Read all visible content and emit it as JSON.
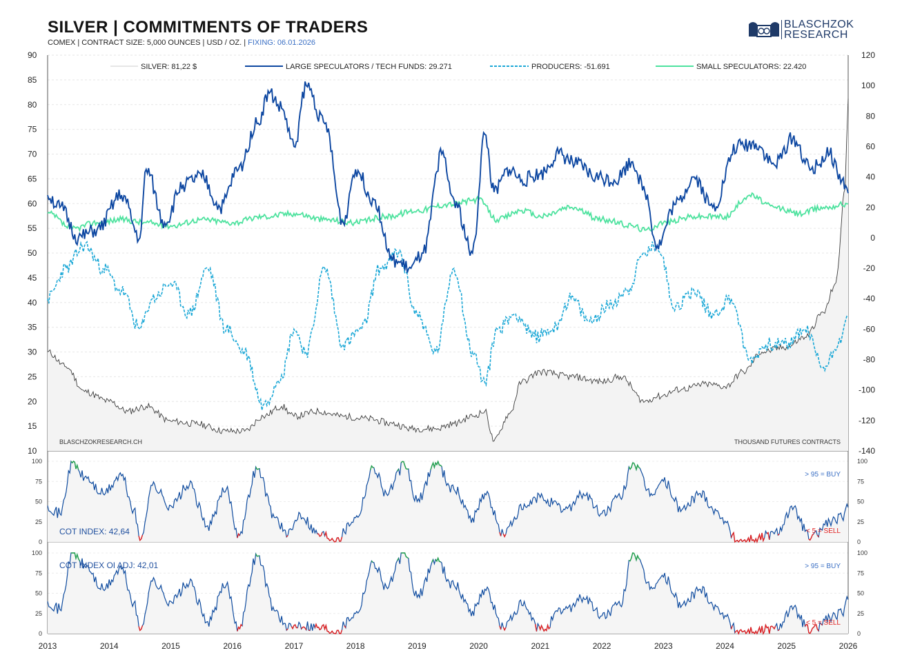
{
  "header": {
    "title": "SILVER | COMMITMENTS OF TRADERS",
    "subtitle_main": "COMEX | CONTRACT SIZE: 5,000 OUNCES | USD / OZ. |",
    "subtitle_fixing": "FIXING: 06.01.2026"
  },
  "logo": {
    "line1": "BLASCHZOK",
    "line2": "RESEARCH"
  },
  "colors": {
    "silver": "#3a3a3a",
    "large_specs": "#0d47a1",
    "producers": "#1aa7d6",
    "small_specs": "#4de29e",
    "cot_line": "#0d4a9e",
    "cot_buy": "#22a24a",
    "cot_sell": "#e02020",
    "buy_text": "#3a6fc4",
    "sell_text": "#e02020"
  },
  "chart_data": [
    {
      "type": "line",
      "title": "SILVER | COMMITMENTS OF TRADERS",
      "x_range": [
        2013,
        2026
      ],
      "x_ticks": [
        "2013",
        "2014",
        "2015",
        "2016",
        "2017",
        "2018",
        "2019",
        "2020",
        "2021",
        "2022",
        "2023",
        "2024",
        "2025",
        "2026"
      ],
      "y_left": {
        "range": [
          10,
          90
        ],
        "ticks": [
          "90",
          "85",
          "80",
          "75",
          "70",
          "65",
          "60",
          "55",
          "50",
          "45",
          "40",
          "35",
          "30",
          "25",
          "20",
          "15",
          "10"
        ]
      },
      "y_right": {
        "range": [
          -140,
          120
        ],
        "ticks": [
          "120",
          "100",
          "80",
          "60",
          "40",
          "20",
          "0",
          "-20",
          "-40",
          "-60",
          "-80",
          "-100",
          "-120",
          "-140"
        ]
      },
      "grid": true,
      "legend_position": "top",
      "watermark": "BLASCHZOKRESEARCH.CH",
      "units_note": "THOUSAND  FUTURES CONTRACTS",
      "series": [
        {
          "name": "SILVER: 81,22 $",
          "axis": "left",
          "x": [
            2013.0,
            2013.3,
            2013.6,
            2014.0,
            2014.3,
            2014.6,
            2015.0,
            2015.4,
            2015.9,
            2016.2,
            2016.5,
            2016.8,
            2017.0,
            2017.4,
            2017.8,
            2018.2,
            2018.6,
            2018.9,
            2019.3,
            2019.6,
            2019.9,
            2020.1,
            2020.25,
            2020.5,
            2020.7,
            2021.0,
            2021.5,
            2022.0,
            2022.3,
            2022.7,
            2022.9,
            2023.3,
            2023.7,
            2024.0,
            2024.3,
            2024.6,
            2025.0,
            2025.3,
            2025.6,
            2025.8,
            2025.95,
            2026.0
          ],
          "y": [
            30,
            27,
            22,
            20,
            18,
            19,
            16,
            15.5,
            14,
            14,
            17,
            19,
            17,
            18,
            17,
            16.5,
            15.5,
            14.5,
            14.5,
            15.5,
            17,
            18,
            12,
            17.5,
            24,
            26,
            25,
            24,
            25,
            20,
            21,
            22.5,
            23.5,
            23,
            26,
            30,
            31,
            33,
            38,
            44,
            63,
            81.2
          ]
        },
        {
          "name": "LARGE SPECULATORS / TECH FUNDS: 29.271",
          "axis": "right",
          "x": [
            2013.0,
            2013.2,
            2013.5,
            2013.8,
            2014.2,
            2014.5,
            2014.6,
            2014.9,
            2015.2,
            2015.5,
            2015.8,
            2016.1,
            2016.4,
            2016.6,
            2016.8,
            2017.0,
            2017.2,
            2017.5,
            2017.8,
            2018.0,
            2018.3,
            2018.6,
            2018.9,
            2019.1,
            2019.4,
            2019.6,
            2019.9,
            2020.1,
            2020.25,
            2020.5,
            2020.7,
            2021.0,
            2021.3,
            2021.6,
            2021.9,
            2022.2,
            2022.5,
            2022.7,
            2022.9,
            2023.2,
            2023.5,
            2023.8,
            2024.2,
            2024.5,
            2024.8,
            2025.1,
            2025.4,
            2025.7,
            2025.9,
            2026.0
          ],
          "y": [
            28,
            20,
            0,
            5,
            28,
            0,
            45,
            10,
            35,
            40,
            20,
            45,
            75,
            95,
            85,
            60,
            100,
            75,
            10,
            45,
            25,
            -15,
            -20,
            -10,
            55,
            25,
            -10,
            68,
            30,
            45,
            38,
            42,
            55,
            48,
            40,
            38,
            50,
            30,
            -5,
            22,
            40,
            20,
            60,
            62,
            48,
            65,
            45,
            55,
            38,
            29.3
          ]
        },
        {
          "name": "PRODUCERS: -51.691",
          "axis": "right",
          "x": [
            2013.0,
            2013.3,
            2013.6,
            2013.9,
            2014.2,
            2014.5,
            2014.7,
            2015.0,
            2015.3,
            2015.6,
            2015.9,
            2016.2,
            2016.5,
            2016.8,
            2017.0,
            2017.2,
            2017.5,
            2017.8,
            2018.1,
            2018.4,
            2018.7,
            2019.0,
            2019.3,
            2019.6,
            2019.9,
            2020.1,
            2020.3,
            2020.6,
            2020.9,
            2021.2,
            2021.5,
            2021.8,
            2022.1,
            2022.4,
            2022.7,
            2022.9,
            2023.2,
            2023.5,
            2023.8,
            2024.1,
            2024.4,
            2024.7,
            2025.0,
            2025.3,
            2025.6,
            2025.9,
            2026.0
          ],
          "y": [
            -40,
            -20,
            -5,
            -20,
            -35,
            -60,
            -40,
            -30,
            -50,
            -20,
            -60,
            -75,
            -110,
            -90,
            -60,
            -75,
            -20,
            -70,
            -60,
            -20,
            -10,
            -50,
            -75,
            -20,
            -75,
            -95,
            -60,
            -50,
            -65,
            -60,
            -40,
            -55,
            -45,
            -35,
            -10,
            -5,
            -45,
            -35,
            -50,
            -40,
            -80,
            -70,
            -70,
            -60,
            -85,
            -65,
            -51.7
          ]
        },
        {
          "name": "SMALL SPECULATORS: 22.420",
          "axis": "right",
          "x": [
            2013.0,
            2013.4,
            2013.8,
            2014.2,
            2014.6,
            2015.0,
            2015.5,
            2016.0,
            2016.5,
            2017.0,
            2017.5,
            2018.0,
            2018.5,
            2019.0,
            2019.5,
            2020.0,
            2020.3,
            2020.7,
            2021.0,
            2021.5,
            2022.0,
            2022.5,
            2022.7,
            2023.0,
            2023.5,
            2024.0,
            2024.4,
            2024.8,
            2025.2,
            2025.6,
            2026.0
          ],
          "y": [
            16,
            6,
            10,
            12,
            10,
            8,
            12,
            10,
            14,
            16,
            12,
            10,
            14,
            18,
            22,
            25,
            12,
            18,
            14,
            20,
            12,
            8,
            5,
            10,
            14,
            14,
            28,
            20,
            16,
            20,
            22.4
          ]
        }
      ]
    },
    {
      "type": "line",
      "title": "COT INDEX: 42,64",
      "y_range": [
        0,
        100
      ],
      "y_ticks": [
        "100",
        "75",
        "50",
        "25",
        "0"
      ],
      "annotations": [
        "> 95 = BUY",
        "< 5 = SELL"
      ],
      "x": [
        2013.0,
        2013.2,
        2013.4,
        2013.6,
        2013.9,
        2014.2,
        2014.4,
        2014.5,
        2014.7,
        2015.0,
        2015.3,
        2015.6,
        2015.9,
        2016.1,
        2016.4,
        2016.7,
        2016.9,
        2017.1,
        2017.4,
        2017.7,
        2018.0,
        2018.3,
        2018.5,
        2018.8,
        2019.0,
        2019.3,
        2019.6,
        2019.9,
        2020.1,
        2020.4,
        2020.7,
        2021.0,
        2021.4,
        2021.7,
        2022.0,
        2022.3,
        2022.5,
        2022.8,
        2023.0,
        2023.3,
        2023.6,
        2023.9,
        2024.2,
        2024.5,
        2024.8,
        2025.1,
        2025.4,
        2025.7,
        2025.9,
        2026.0
      ],
      "y": [
        45,
        35,
        98,
        80,
        60,
        82,
        40,
        2,
        70,
        45,
        70,
        20,
        65,
        10,
        90,
        30,
        8,
        35,
        10,
        5,
        30,
        92,
        60,
        95,
        50,
        98,
        65,
        30,
        60,
        10,
        40,
        55,
        40,
        60,
        35,
        55,
        98,
        60,
        75,
        40,
        60,
        35,
        2,
        4,
        10,
        40,
        5,
        25,
        30,
        42.64
      ]
    },
    {
      "type": "line",
      "title": "COT INDEX OI ADJ: 42,01",
      "y_range": [
        0,
        100
      ],
      "y_ticks": [
        "100",
        "75",
        "50",
        "25",
        "0"
      ],
      "annotations": [
        "> 95 = BUY",
        "< 5 = SELL"
      ],
      "x": [
        2013.0,
        2013.2,
        2013.4,
        2013.6,
        2013.9,
        2014.2,
        2014.4,
        2014.5,
        2014.7,
        2015.0,
        2015.3,
        2015.6,
        2015.9,
        2016.1,
        2016.4,
        2016.7,
        2016.9,
        2017.1,
        2017.4,
        2017.7,
        2018.0,
        2018.3,
        2018.5,
        2018.8,
        2019.0,
        2019.3,
        2019.6,
        2019.9,
        2020.1,
        2020.4,
        2020.7,
        2021.0,
        2021.4,
        2021.7,
        2022.0,
        2022.3,
        2022.5,
        2022.8,
        2023.0,
        2023.3,
        2023.6,
        2023.9,
        2024.2,
        2024.5,
        2024.8,
        2025.1,
        2025.4,
        2025.7,
        2025.9,
        2026.0
      ],
      "y": [
        40,
        30,
        100,
        85,
        55,
        80,
        38,
        4,
        65,
        40,
        62,
        15,
        60,
        8,
        96,
        28,
        6,
        12,
        8,
        4,
        25,
        88,
        58,
        100,
        45,
        92,
        60,
        28,
        55,
        8,
        35,
        5,
        30,
        45,
        22,
        35,
        100,
        58,
        70,
        35,
        55,
        30,
        4,
        3,
        6,
        30,
        3,
        20,
        25,
        42.01
      ]
    }
  ]
}
